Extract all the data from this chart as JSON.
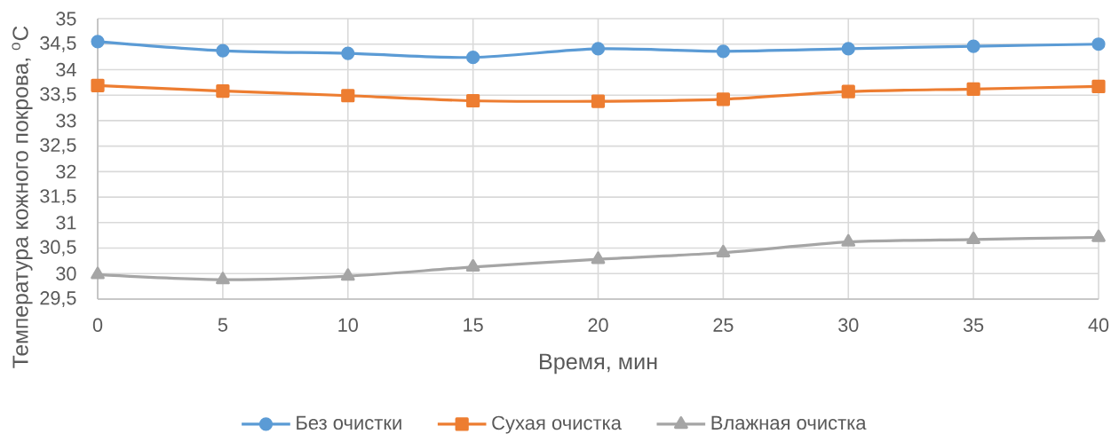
{
  "chart_data": {
    "type": "line",
    "xlabel": "Время, мин",
    "ylabel": "Температура кожного покрова, $^{o}$C",
    "x": [
      0,
      5,
      10,
      15,
      20,
      25,
      30,
      35,
      40
    ],
    "series": [
      {
        "name": "Без очистки",
        "color": "#5b9bd5",
        "marker": "circle",
        "values": [
          34.55,
          34.37,
          34.32,
          34.24,
          34.41,
          34.36,
          34.41,
          34.46,
          34.5
        ]
      },
      {
        "name": "Сухая очистка",
        "color": "#ed7d31",
        "marker": "square",
        "values": [
          33.69,
          33.58,
          33.49,
          33.39,
          33.38,
          33.42,
          33.57,
          33.62,
          33.67
        ]
      },
      {
        "name": "Влажная очистка",
        "color": "#a5a5a5",
        "marker": "triangle",
        "values": [
          29.98,
          29.88,
          29.95,
          30.13,
          30.28,
          30.41,
          30.62,
          30.67,
          30.71
        ]
      }
    ],
    "xlim": [
      0,
      40
    ],
    "xticks": [
      0,
      5,
      10,
      15,
      20,
      25,
      30,
      35,
      40
    ],
    "ylim": [
      29.5,
      35
    ],
    "yticks": [
      {
        "value": 29.5,
        "label": "29,5"
      },
      30,
      {
        "value": 30.5,
        "label": "30,5"
      },
      31,
      {
        "value": 31.5,
        "label": "31,5"
      },
      32,
      {
        "value": 32.5,
        "label": "32,5"
      },
      33,
      {
        "value": 33.5,
        "label": "33,5"
      },
      34,
      {
        "value": 34.5,
        "label": "34,5"
      },
      35
    ],
    "grid": true,
    "legend": "bottom",
    "line_style": "solid"
  }
}
